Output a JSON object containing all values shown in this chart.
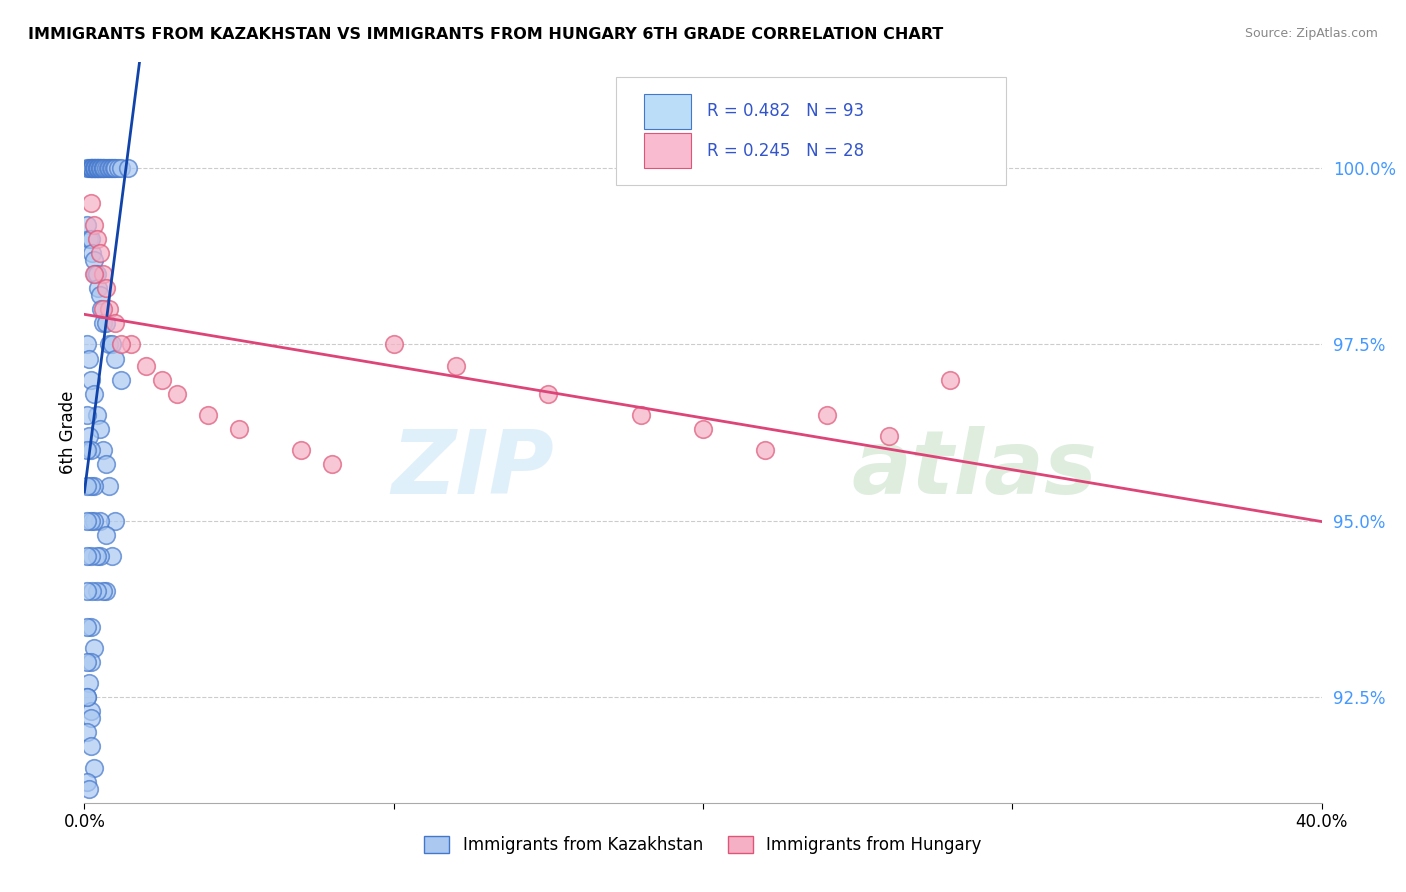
{
  "title": "IMMIGRANTS FROM KAZAKHSTAN VS IMMIGRANTS FROM HUNGARY 6TH GRADE CORRELATION CHART",
  "source": "Source: ZipAtlas.com",
  "ylabel": "6th Grade",
  "watermark_zip": "ZIP",
  "watermark_atlas": "atlas",
  "legend_kaz_R": 0.482,
  "legend_kaz_N": 93,
  "legend_hun_R": 0.245,
  "legend_hun_N": 28,
  "kaz_color": "#aac8f0",
  "kaz_edge_color": "#4477cc",
  "hun_color": "#f5b0c5",
  "hun_edge_color": "#dd5577",
  "kaz_line_color": "#1144aa",
  "hun_line_color": "#dd4477",
  "legend_box_kaz": "#bbddf8",
  "legend_box_hun": "#f8bbd0",
  "kaz_x": [
    0.1,
    0.15,
    0.2,
    0.2,
    0.25,
    0.25,
    0.3,
    0.3,
    0.35,
    0.35,
    0.4,
    0.4,
    0.45,
    0.45,
    0.5,
    0.5,
    0.55,
    0.6,
    0.6,
    0.65,
    0.7,
    0.75,
    0.8,
    0.85,
    0.9,
    0.95,
    1.0,
    1.1,
    1.2,
    1.4,
    0.1,
    0.15,
    0.2,
    0.25,
    0.3,
    0.35,
    0.4,
    0.45,
    0.5,
    0.55,
    0.6,
    0.7,
    0.8,
    0.9,
    1.0,
    1.2,
    0.1,
    0.15,
    0.2,
    0.3,
    0.4,
    0.5,
    0.6,
    0.7,
    0.8,
    1.0,
    0.1,
    0.15,
    0.2,
    0.3,
    0.5,
    0.7,
    0.9,
    0.1,
    0.2,
    0.3,
    0.5,
    0.7,
    0.1,
    0.2,
    0.4,
    0.6,
    0.1,
    0.2,
    0.4,
    0.1,
    0.25,
    0.1,
    0.2,
    0.3,
    0.1,
    0.2,
    0.1,
    0.15,
    0.1,
    0.2,
    0.1,
    0.2,
    0.1,
    0.2,
    0.3,
    0.1,
    0.15
  ],
  "kaz_y": [
    100.0,
    100.0,
    100.0,
    100.0,
    100.0,
    100.0,
    100.0,
    100.0,
    100.0,
    100.0,
    100.0,
    100.0,
    100.0,
    100.0,
    100.0,
    100.0,
    100.0,
    100.0,
    100.0,
    100.0,
    100.0,
    100.0,
    100.0,
    100.0,
    100.0,
    100.0,
    100.0,
    100.0,
    100.0,
    100.0,
    99.2,
    99.0,
    99.0,
    98.8,
    98.7,
    98.5,
    98.5,
    98.3,
    98.2,
    98.0,
    97.8,
    97.8,
    97.5,
    97.5,
    97.3,
    97.0,
    97.5,
    97.3,
    97.0,
    96.8,
    96.5,
    96.3,
    96.0,
    95.8,
    95.5,
    95.0,
    96.5,
    96.2,
    96.0,
    95.5,
    95.0,
    94.8,
    94.5,
    96.0,
    95.5,
    95.0,
    94.5,
    94.0,
    95.5,
    95.0,
    94.5,
    94.0,
    95.0,
    94.5,
    94.0,
    94.5,
    94.0,
    94.0,
    93.5,
    93.2,
    93.5,
    93.0,
    93.0,
    92.7,
    92.5,
    92.3,
    92.5,
    92.2,
    92.0,
    91.8,
    91.5,
    91.3,
    91.2
  ],
  "hun_x": [
    0.2,
    0.3,
    0.4,
    0.5,
    0.6,
    0.7,
    0.8,
    1.0,
    1.5,
    2.0,
    2.5,
    3.0,
    4.0,
    5.0,
    7.0,
    8.0,
    10.0,
    12.0,
    15.0,
    18.0,
    20.0,
    22.0,
    24.0,
    26.0,
    28.0,
    0.3,
    0.6,
    1.2
  ],
  "hun_y": [
    99.5,
    99.2,
    99.0,
    98.8,
    98.5,
    98.3,
    98.0,
    97.8,
    97.5,
    97.2,
    97.0,
    96.8,
    96.5,
    96.3,
    96.0,
    95.8,
    97.5,
    97.2,
    96.8,
    96.5,
    96.3,
    96.0,
    96.5,
    96.2,
    97.0,
    98.5,
    98.0,
    97.5
  ],
  "xlim": [
    0.0,
    40.0
  ],
  "ylim": [
    91.0,
    101.5
  ],
  "yticks": [
    92.5,
    95.0,
    97.5,
    100.0
  ],
  "background_color": "#ffffff",
  "grid_color": "#cccccc",
  "tick_color": "#4499ff"
}
